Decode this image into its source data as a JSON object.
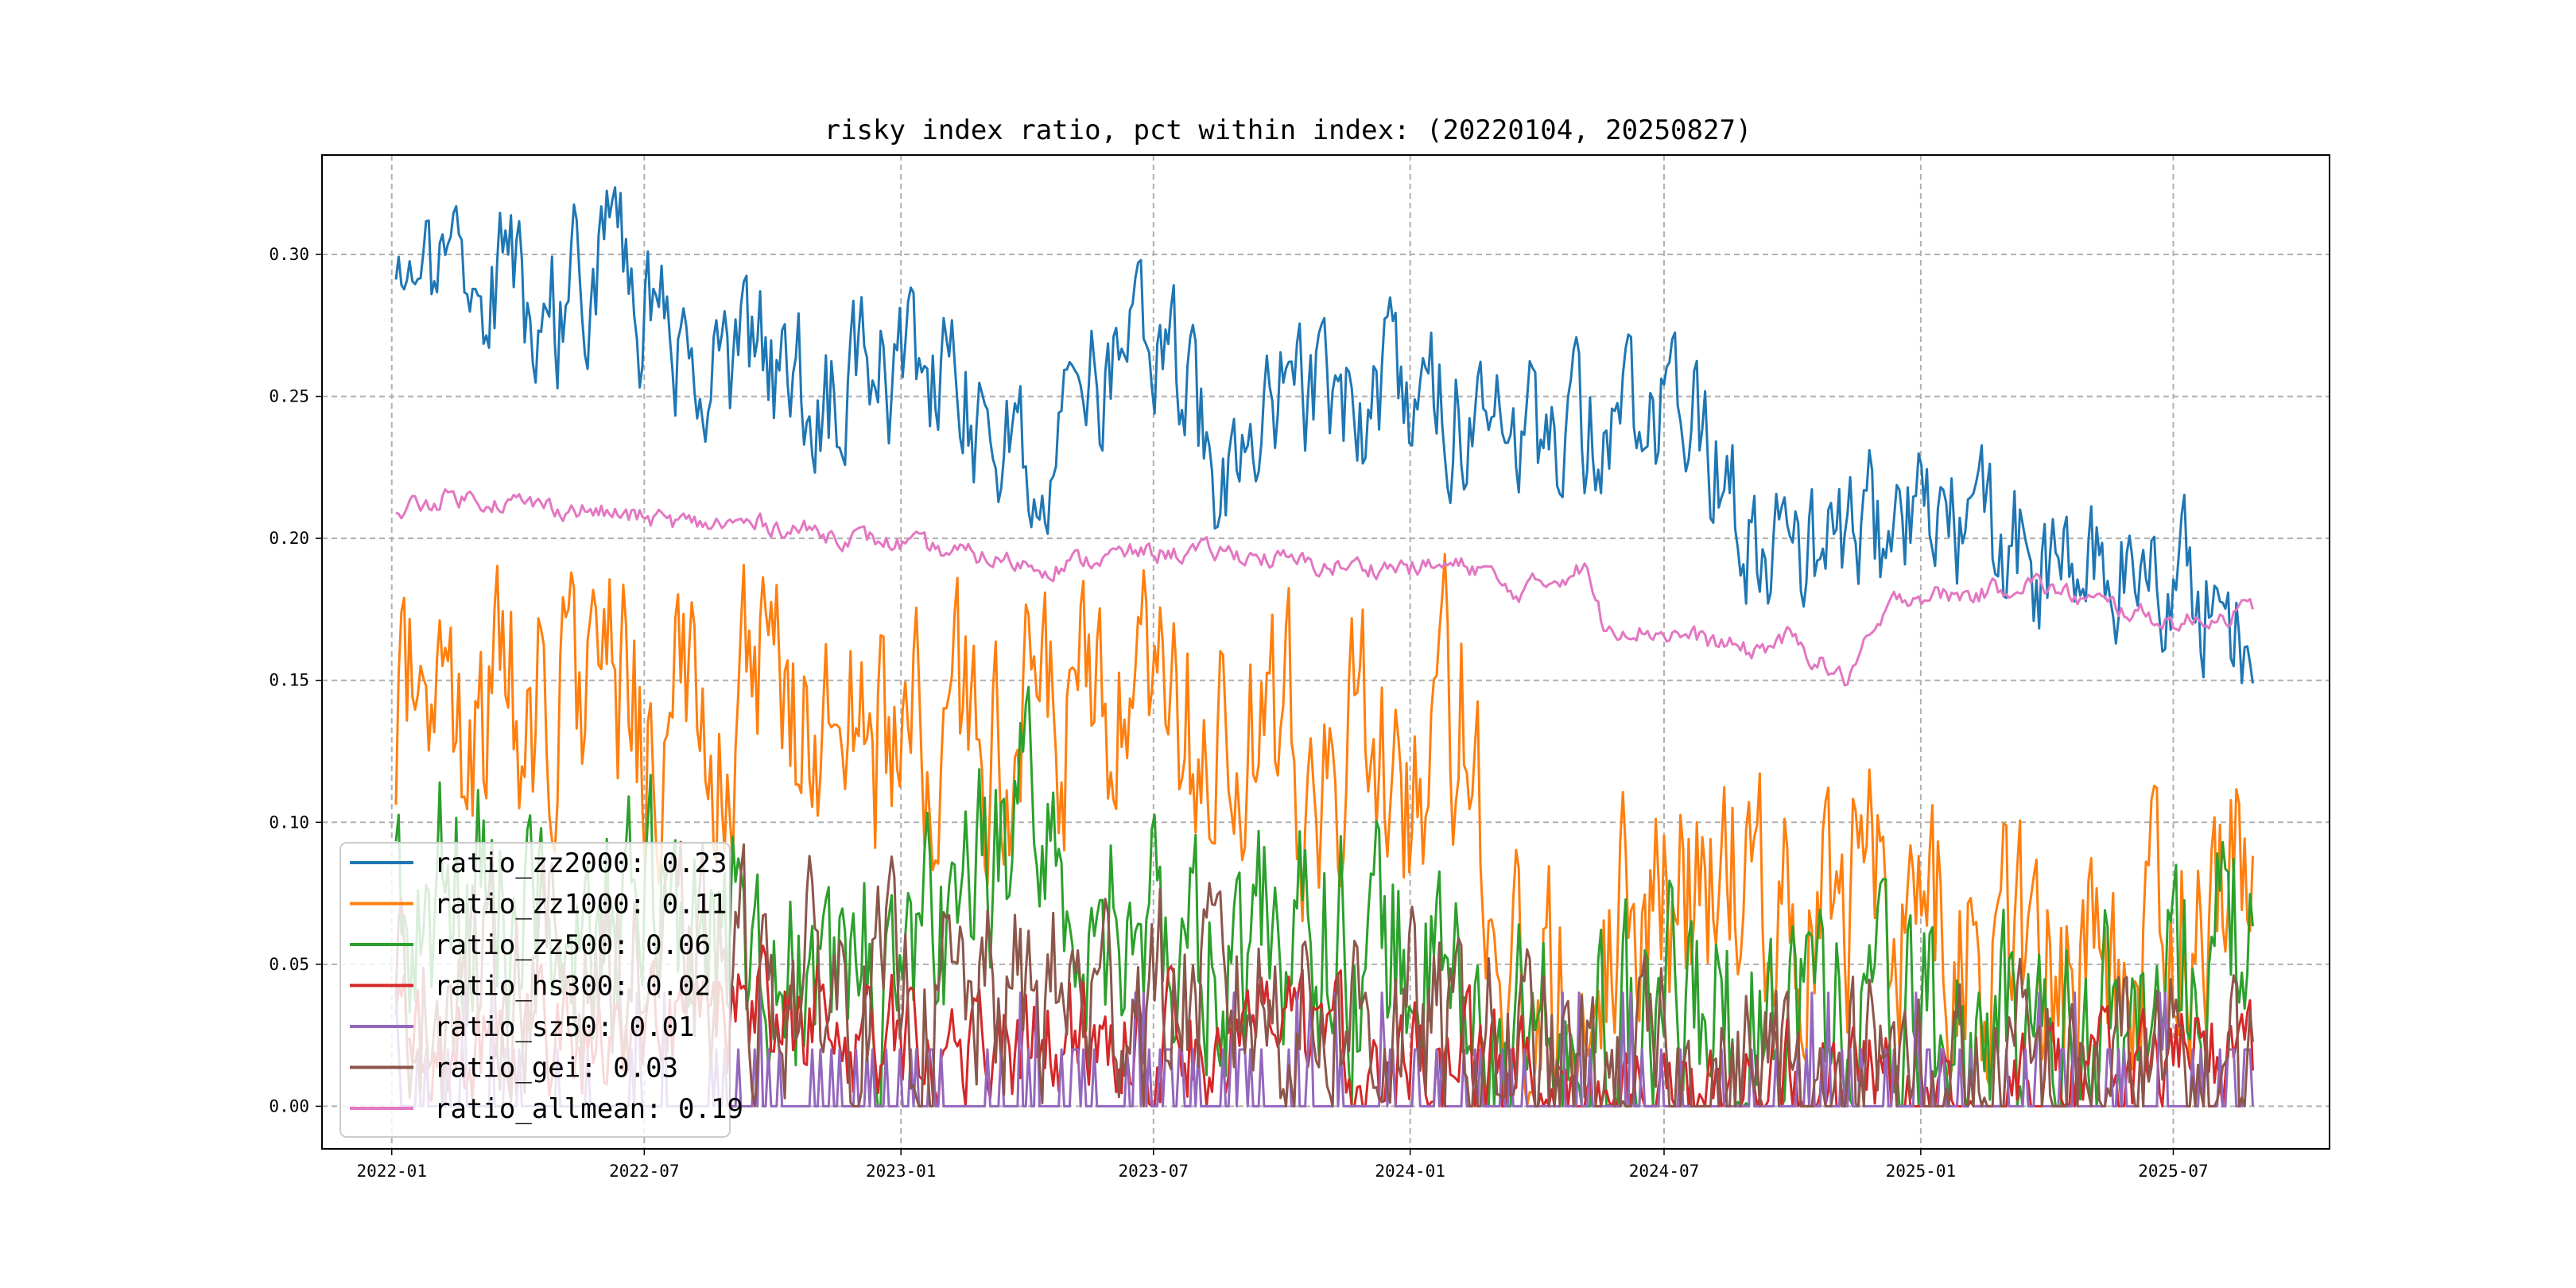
{
  "chart_data": {
    "type": "line",
    "title": "risky index ratio, pct within index: (20220104, 20250827)",
    "xlabel": "",
    "ylabel": "",
    "x_start": "2022-01-04",
    "x_end": "2025-08-27",
    "xlim": [
      "2021-11-12",
      "2025-10-21"
    ],
    "ylim": [
      -0.015,
      0.335
    ],
    "grid": true,
    "legend_position": "lower-left",
    "x_ticks": [
      {
        "date": "2022-01-01",
        "label": "2022-01"
      },
      {
        "date": "2022-07-01",
        "label": "2022-07"
      },
      {
        "date": "2023-01-01",
        "label": "2023-01"
      },
      {
        "date": "2023-07-01",
        "label": "2023-07"
      },
      {
        "date": "2024-01-01",
        "label": "2024-01"
      },
      {
        "date": "2024-07-01",
        "label": "2024-07"
      },
      {
        "date": "2025-01-01",
        "label": "2025-01"
      },
      {
        "date": "2025-07-01",
        "label": "2025-07"
      }
    ],
    "y_ticks": [
      {
        "value": 0.0,
        "label": "0.00"
      },
      {
        "value": 0.05,
        "label": "0.05"
      },
      {
        "value": 0.1,
        "label": "0.10"
      },
      {
        "value": 0.15,
        "label": "0.15"
      },
      {
        "value": 0.2,
        "label": "0.20"
      },
      {
        "value": 0.25,
        "label": "0.25"
      },
      {
        "value": 0.3,
        "label": "0.30"
      }
    ],
    "series": [
      {
        "name": "ratio_zz2000",
        "legend": "ratio_zz2000: 0.23",
        "color": "#1f77b4",
        "baseline": [
          [
            0,
            0.305
          ],
          [
            0.02,
            0.285
          ],
          [
            0.05,
            0.29
          ],
          [
            0.09,
            0.275
          ],
          [
            0.11,
            0.305
          ],
          [
            0.13,
            0.28
          ],
          [
            0.16,
            0.255
          ],
          [
            0.19,
            0.265
          ],
          [
            0.23,
            0.245
          ],
          [
            0.27,
            0.26
          ],
          [
            0.31,
            0.245
          ],
          [
            0.35,
            0.23
          ],
          [
            0.38,
            0.25
          ],
          [
            0.41,
            0.265
          ],
          [
            0.44,
            0.225
          ],
          [
            0.48,
            0.25
          ],
          [
            0.52,
            0.245
          ],
          [
            0.55,
            0.255
          ],
          [
            0.58,
            0.24
          ],
          [
            0.61,
            0.235
          ],
          [
            0.64,
            0.24
          ],
          [
            0.67,
            0.24
          ],
          [
            0.7,
            0.24
          ],
          [
            0.73,
            0.205
          ],
          [
            0.76,
            0.19
          ],
          [
            0.79,
            0.2
          ],
          [
            0.82,
            0.205
          ],
          [
            0.86,
            0.2
          ],
          [
            0.89,
            0.185
          ],
          [
            0.93,
            0.19
          ],
          [
            0.96,
            0.185
          ],
          [
            1.0,
            0.17
          ]
        ],
        "noise": 0.022
      },
      {
        "name": "ratio_zz1000",
        "legend": "ratio_zz1000: 0.11",
        "color": "#ff7f0e",
        "baseline": [
          [
            0,
            0.14
          ],
          [
            0.03,
            0.13
          ],
          [
            0.1,
            0.15
          ],
          [
            0.14,
            0.13
          ],
          [
            0.2,
            0.14
          ],
          [
            0.25,
            0.13
          ],
          [
            0.3,
            0.125
          ],
          [
            0.35,
            0.13
          ],
          [
            0.4,
            0.13
          ],
          [
            0.45,
            0.12
          ],
          [
            0.5,
            0.12
          ],
          [
            0.54,
            0.115
          ],
          [
            0.58,
            0.14
          ],
          [
            0.585,
            0.1
          ],
          [
            0.6,
            0.035
          ],
          [
            0.63,
            0.05
          ],
          [
            0.66,
            0.07
          ],
          [
            0.7,
            0.08
          ],
          [
            0.75,
            0.075
          ],
          [
            0.8,
            0.08
          ],
          [
            0.85,
            0.055
          ],
          [
            0.9,
            0.05
          ],
          [
            0.95,
            0.06
          ],
          [
            1.0,
            0.095
          ]
        ],
        "noise": 0.038
      },
      {
        "name": "ratio_zz500",
        "legend": "ratio_zz500: 0.06",
        "color": "#2ca02c",
        "baseline": [
          [
            0,
            0.07
          ],
          [
            0.05,
            0.08
          ],
          [
            0.1,
            0.055
          ],
          [
            0.15,
            0.07
          ],
          [
            0.2,
            0.05
          ],
          [
            0.25,
            0.04
          ],
          [
            0.3,
            0.05
          ],
          [
            0.33,
            0.1
          ],
          [
            0.38,
            0.07
          ],
          [
            0.42,
            0.05
          ],
          [
            0.48,
            0.065
          ],
          [
            0.52,
            0.06
          ],
          [
            0.55,
            0.05
          ],
          [
            0.585,
            0.02
          ],
          [
            0.62,
            0.01
          ],
          [
            0.66,
            0.02
          ],
          [
            0.7,
            0.03
          ],
          [
            0.75,
            0.04
          ],
          [
            0.8,
            0.03
          ],
          [
            0.85,
            0.02
          ],
          [
            0.9,
            0.02
          ],
          [
            0.95,
            0.035
          ],
          [
            1.0,
            0.07
          ]
        ],
        "noise": 0.035
      },
      {
        "name": "ratio_hs300",
        "legend": "ratio_hs300: 0.02",
        "color": "#d62728",
        "baseline": [
          [
            0,
            0.02
          ],
          [
            0.1,
            0.025
          ],
          [
            0.2,
            0.03
          ],
          [
            0.3,
            0.02
          ],
          [
            0.4,
            0.025
          ],
          [
            0.5,
            0.02
          ],
          [
            0.585,
            0.01
          ],
          [
            0.65,
            0.004
          ],
          [
            0.75,
            0.006
          ],
          [
            0.85,
            0.006
          ],
          [
            0.92,
            0.01
          ],
          [
            1.0,
            0.02
          ]
        ],
        "noise": 0.018
      },
      {
        "name": "ratio_sz50",
        "legend": "ratio_sz50: 0.01",
        "color": "#9467bd",
        "baseline": [
          [
            0,
            0.0
          ],
          [
            0.3,
            0.0
          ],
          [
            0.4,
            0.01
          ],
          [
            0.5,
            0.0
          ],
          [
            0.7,
            0.0
          ],
          [
            0.9,
            0.003
          ],
          [
            1.0,
            0.01
          ]
        ],
        "noise": 0.0,
        "mode": "steps",
        "step_values": [
          0.0,
          0.02,
          0.04
        ]
      },
      {
        "name": "ratio_gei",
        "legend": "ratio_gei: 0.03",
        "color": "#8c564b",
        "baseline": [
          [
            0,
            0.04
          ],
          [
            0.1,
            0.05
          ],
          [
            0.2,
            0.045
          ],
          [
            0.3,
            0.035
          ],
          [
            0.4,
            0.04
          ],
          [
            0.5,
            0.035
          ],
          [
            0.585,
            0.02
          ],
          [
            0.65,
            0.006
          ],
          [
            0.75,
            0.01
          ],
          [
            0.85,
            0.008
          ],
          [
            0.92,
            0.008
          ],
          [
            1.0,
            0.01
          ]
        ],
        "noise": 0.03
      },
      {
        "name": "ratio_allmean",
        "legend": "ratio_allmean: 0.19",
        "color": "#e377c2",
        "baseline": [
          [
            0,
            0.21
          ],
          [
            0.03,
            0.215
          ],
          [
            0.1,
            0.21
          ],
          [
            0.16,
            0.205
          ],
          [
            0.2,
            0.205
          ],
          [
            0.25,
            0.2
          ],
          [
            0.3,
            0.195
          ],
          [
            0.35,
            0.19
          ],
          [
            0.4,
            0.195
          ],
          [
            0.45,
            0.195
          ],
          [
            0.5,
            0.19
          ],
          [
            0.55,
            0.19
          ],
          [
            0.585,
            0.19
          ],
          [
            0.6,
            0.18
          ],
          [
            0.64,
            0.19
          ],
          [
            0.65,
            0.17
          ],
          [
            0.7,
            0.165
          ],
          [
            0.73,
            0.16
          ],
          [
            0.75,
            0.165
          ],
          [
            0.78,
            0.15
          ],
          [
            0.81,
            0.18
          ],
          [
            0.85,
            0.18
          ],
          [
            0.88,
            0.185
          ],
          [
            0.9,
            0.18
          ],
          [
            0.93,
            0.175
          ],
          [
            0.96,
            0.17
          ],
          [
            1.0,
            0.175
          ]
        ],
        "noise": 0.003
      }
    ]
  }
}
